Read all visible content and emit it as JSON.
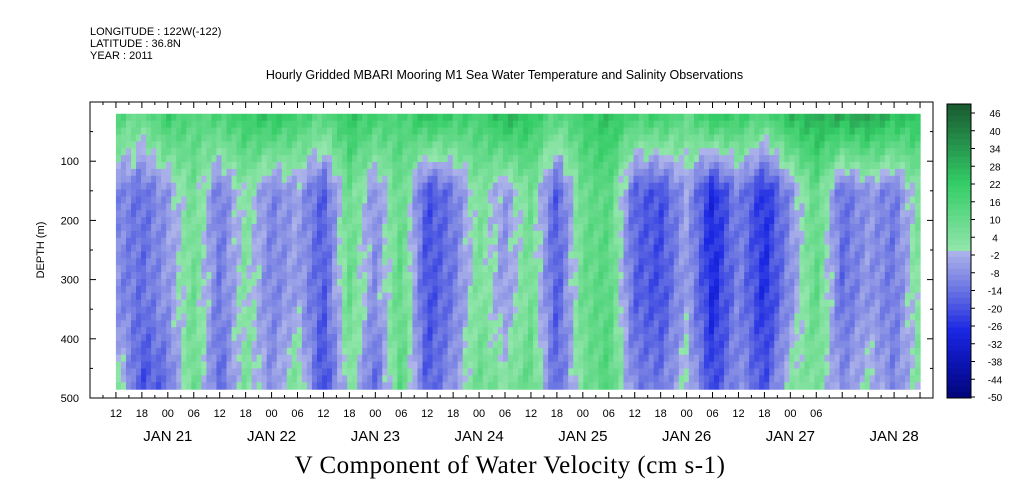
{
  "header": {
    "longitude": "LONGITUDE : 122W(-122)",
    "latitude": "LATITUDE : 36.8N",
    "year": "YEAR : 2011"
  },
  "chart_data": {
    "type": "heatmap",
    "title": "Hourly Gridded MBARI Mooring M1 Sea Water Temperature and Salinity Observations",
    "variable_title": "V Component of Water Velocity (cm s-1)",
    "ylabel": "DEPTH (m)",
    "ylim": [
      500,
      0
    ],
    "y_ticks": [
      100,
      200,
      300,
      400,
      500
    ],
    "x_hour_ticks": [
      "12",
      "18",
      "00",
      "06",
      "12",
      "18",
      "00",
      "06",
      "12",
      "18",
      "00",
      "06",
      "12",
      "18",
      "00",
      "06",
      "12",
      "18",
      "00",
      "06",
      "12",
      "18",
      "00",
      "06",
      "12",
      "18",
      "00",
      "06"
    ],
    "x_date_labels": [
      "JAN 21",
      "JAN 22",
      "JAN 23",
      "JAN 24",
      "JAN 25",
      "JAN 26",
      "JAN 27",
      "JAN 28"
    ],
    "xlim": [
      "2011-01-20T06:00",
      "2011-01-28T09:00"
    ],
    "data_range": {
      "x_start": "2011-01-20T12:00",
      "x_end": "2011-01-28T06:00",
      "depth_top": 20,
      "depth_bottom": 485
    },
    "colorbar": {
      "levels": [
        "46",
        "40",
        "34",
        "28",
        "22",
        "16",
        "10",
        "4",
        "-2",
        "-8",
        "-14",
        "-20",
        "-26",
        "-32",
        "-38",
        "-44",
        "-50"
      ],
      "vmin": -50,
      "vmax": 50
    },
    "grid": false,
    "field_columns": [
      {
        "time": "2011-01-20T12:00",
        "top": 16,
        "mid": -8,
        "deep": 6
      },
      {
        "time": "2011-01-20T18:00",
        "top": 10,
        "mid": -14,
        "deep": -20
      },
      {
        "time": "2011-01-21T00:00",
        "top": 22,
        "mid": -6,
        "deep": -14
      },
      {
        "time": "2011-01-21T06:00",
        "top": 14,
        "mid": 8,
        "deep": 10
      },
      {
        "time": "2011-01-21T12:00",
        "top": 18,
        "mid": -12,
        "deep": -16
      },
      {
        "time": "2011-01-21T18:00",
        "top": 22,
        "mid": 4,
        "deep": 6
      },
      {
        "time": "2011-01-22T00:00",
        "top": 26,
        "mid": -10,
        "deep": -8
      },
      {
        "time": "2011-01-22T06:00",
        "top": 20,
        "mid": -4,
        "deep": 8
      },
      {
        "time": "2011-01-22T12:00",
        "top": 14,
        "mid": -18,
        "deep": -22
      },
      {
        "time": "2011-01-22T18:00",
        "top": 24,
        "mid": 10,
        "deep": 4
      },
      {
        "time": "2011-01-23T00:00",
        "top": 20,
        "mid": -8,
        "deep": -16
      },
      {
        "time": "2011-01-23T06:00",
        "top": 16,
        "mid": 12,
        "deep": 14
      },
      {
        "time": "2011-01-23T12:00",
        "top": 28,
        "mid": -20,
        "deep": -18
      },
      {
        "time": "2011-01-23T18:00",
        "top": 22,
        "mid": -12,
        "deep": -6
      },
      {
        "time": "2011-01-24T00:00",
        "top": 18,
        "mid": 6,
        "deep": 10
      },
      {
        "time": "2011-01-24T06:00",
        "top": 30,
        "mid": -6,
        "deep": 4
      },
      {
        "time": "2011-01-24T12:00",
        "top": 24,
        "mid": 8,
        "deep": 12
      },
      {
        "time": "2011-01-24T18:00",
        "top": 14,
        "mid": -18,
        "deep": -16
      },
      {
        "time": "2011-01-25T00:00",
        "top": 20,
        "mid": 10,
        "deep": 6
      },
      {
        "time": "2011-01-25T06:00",
        "top": 26,
        "mid": 14,
        "deep": 16
      },
      {
        "time": "2011-01-25T12:00",
        "top": 18,
        "mid": -16,
        "deep": -10
      },
      {
        "time": "2011-01-25T18:00",
        "top": 22,
        "mid": -20,
        "deep": -12
      },
      {
        "time": "2011-01-26T00:00",
        "top": 12,
        "mid": -4,
        "deep": 2
      },
      {
        "time": "2011-01-26T06:00",
        "top": 26,
        "mid": -28,
        "deep": -22
      },
      {
        "time": "2011-01-26T12:00",
        "top": 22,
        "mid": -10,
        "deep": -6
      },
      {
        "time": "2011-01-26T18:00",
        "top": 16,
        "mid": -26,
        "deep": -20
      },
      {
        "time": "2011-01-27T00:00",
        "top": 28,
        "mid": -8,
        "deep": 4
      },
      {
        "time": "2011-01-27T06:00",
        "top": 30,
        "mid": 12,
        "deep": 6
      },
      {
        "time": "2011-01-27T12:00",
        "top": 32,
        "mid": -14,
        "deep": -8
      },
      {
        "time": "2011-01-27T18:00",
        "top": 34,
        "mid": -6,
        "deep": 2
      },
      {
        "time": "2011-01-28T00:00",
        "top": 28,
        "mid": -12,
        "deep": -10
      },
      {
        "time": "2011-01-28T06:00",
        "top": 24,
        "mid": 6,
        "deep": 4
      }
    ]
  }
}
